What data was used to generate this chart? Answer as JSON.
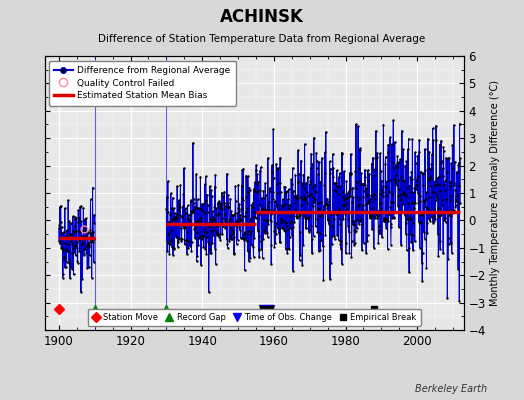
{
  "title": "ACHINSK",
  "subtitle": "Difference of Station Temperature Data from Regional Average",
  "ylabel": "Monthly Temperature Anomaly Difference (°C)",
  "xlabel_ticks": [
    1900,
    1920,
    1940,
    1960,
    1980,
    2000
  ],
  "ylim": [
    -4,
    6
  ],
  "xlim": [
    1896,
    2013
  ],
  "yticks": [
    -4,
    -3,
    -2,
    -1,
    0,
    1,
    2,
    3,
    4,
    5,
    6
  ],
  "background_color": "#d8d8d8",
  "plot_bg_color": "#e8e8e8",
  "line_color": "#0000cc",
  "bias_color": "#dd0000",
  "marker_color": "#000000",
  "watermark": "Berkeley Earth",
  "seed": 42,
  "gap_start": 1910,
  "gap_end": 1930,
  "data_start": 1900,
  "data_end": 2012,
  "bias_segments": [
    {
      "start": 1900,
      "end": 1910,
      "value": -0.65
    },
    {
      "start": 1930,
      "end": 1955,
      "value": -0.12
    },
    {
      "start": 1955,
      "end": 2012,
      "value": 0.32
    }
  ],
  "station_moves": [
    1900
  ],
  "record_gaps": [
    1910,
    1930
  ],
  "time_of_obs_changes": [
    1957,
    1959
  ],
  "empirical_breaks": [
    1957,
    1959,
    1988
  ],
  "qc_failed_year": 1907,
  "qc_failed_value": -0.3
}
